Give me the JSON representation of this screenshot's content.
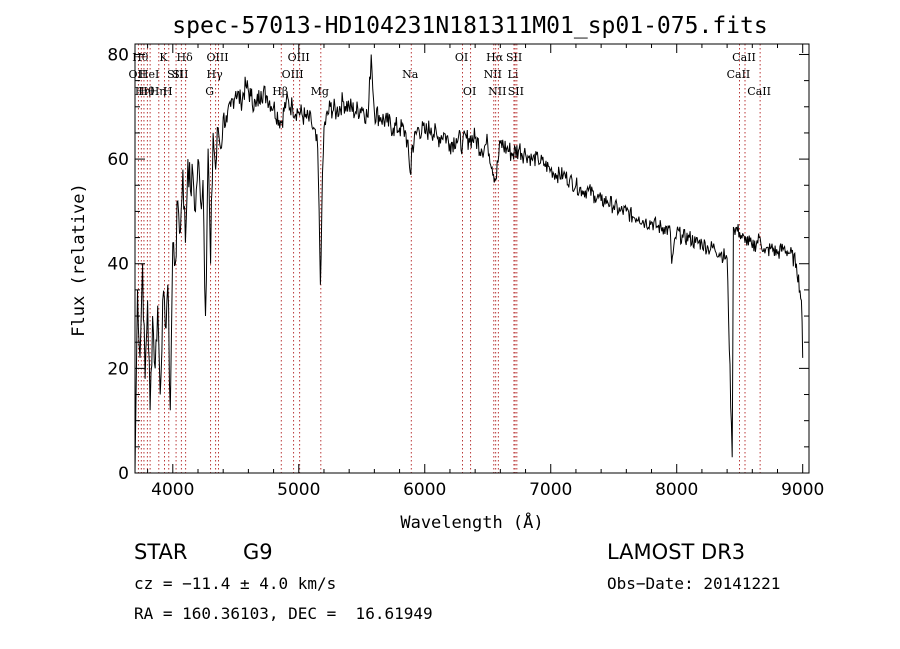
{
  "chart_data": {
    "type": "line",
    "title": "spec-57013-HD104231N181311M01_sp01-075.fits",
    "xlabel": "Wavelength (Å)",
    "ylabel": "Flux (relative)",
    "xlim": [
      3700,
      9050
    ],
    "ylim": [
      0,
      82
    ],
    "xticks": [
      4000,
      5000,
      6000,
      7000,
      8000,
      9000
    ],
    "yticks": [
      0,
      20,
      40,
      60,
      80
    ],
    "series": [
      {
        "x": [
          3700,
          3720,
          3740,
          3760,
          3780,
          3800,
          3820,
          3840,
          3860,
          3880,
          3900,
          3920,
          3940,
          3960,
          3980,
          4000,
          4020,
          4040,
          4060,
          4080,
          4100,
          4120,
          4140,
          4160,
          4180,
          4200,
          4220,
          4240,
          4260,
          4280,
          4300,
          4320,
          4340,
          4360,
          4380,
          4400,
          4430,
          4460,
          4500,
          4540,
          4580,
          4620,
          4660,
          4700,
          4750,
          4800,
          4861,
          4900,
          4950,
          5000,
          5050,
          5100,
          5150,
          5172,
          5183,
          5200,
          5250,
          5300,
          5350,
          5400,
          5450,
          5500,
          5550,
          5575,
          5600,
          5650,
          5700,
          5750,
          5800,
          5850,
          5890,
          5896,
          5950,
          6000,
          6050,
          6100,
          6150,
          6200,
          6250,
          6300,
          6350,
          6400,
          6450,
          6500,
          6563,
          6600,
          6650,
          6700,
          6750,
          6800,
          6850,
          6900,
          6950,
          7000,
          7050,
          7100,
          7150,
          7200,
          7250,
          7300,
          7350,
          7400,
          7450,
          7500,
          7550,
          7600,
          7650,
          7700,
          7750,
          7800,
          7850,
          7900,
          7950,
          7960,
          8000,
          8050,
          8100,
          8150,
          8200,
          8250,
          8300,
          8350,
          8400,
          8440,
          8450,
          8500,
          8542,
          8550,
          8600,
          8662,
          8700,
          8750,
          8800,
          8850,
          8900,
          8950,
          8990,
          9000
        ],
        "y": [
          0,
          35,
          22,
          40,
          18,
          33,
          12,
          30,
          20,
          32,
          15,
          33,
          28,
          36,
          12,
          44,
          40,
          52,
          46,
          58,
          44,
          60,
          54,
          57,
          50,
          60,
          52,
          56,
          30,
          62,
          40,
          65,
          58,
          66,
          62,
          68,
          67,
          70,
          73,
          71,
          74,
          72,
          70,
          73,
          72,
          70,
          67,
          71,
          70,
          69,
          68,
          67,
          62,
          36,
          50,
          66,
          70,
          69,
          71,
          70,
          69,
          70,
          68,
          80,
          69,
          68,
          67,
          66,
          66,
          65,
          57,
          62,
          66,
          65,
          66,
          64,
          65,
          63,
          64,
          63,
          64,
          64,
          62,
          63,
          56,
          63,
          62,
          61,
          62,
          61,
          60,
          60,
          59,
          58,
          57,
          57,
          56,
          55,
          54,
          54,
          53,
          52,
          52,
          51,
          50,
          50,
          49,
          49,
          48,
          48,
          47,
          47,
          46,
          40,
          46,
          45,
          45,
          44,
          44,
          43,
          43,
          42,
          41,
          3,
          47,
          46,
          44,
          45,
          43,
          45,
          42,
          43,
          42,
          43,
          42,
          40,
          33,
          22
        ]
      }
    ],
    "lines": [
      {
        "w": 3727,
        "label": "OII",
        "row": 1
      },
      {
        "w": 3750,
        "label": "Hθ",
        "row": 0
      },
      {
        "w": 3771,
        "label": "Hη",
        "row": 2
      },
      {
        "w": 3798,
        "label": "Hθ",
        "row": 2
      },
      {
        "w": 3820,
        "label": "HeI",
        "row": 1
      },
      {
        "w": 3889,
        "label": "Hη",
        "row": 2
      },
      {
        "w": 3934,
        "label": "K",
        "row": 0
      },
      {
        "w": 3968,
        "label": "H",
        "row": 2
      },
      {
        "w": 4026,
        "label": "SII",
        "row": 1
      },
      {
        "w": 4068,
        "label": "SII",
        "row": 1
      },
      {
        "w": 4102,
        "label": "Hδ",
        "row": 0
      },
      {
        "w": 4300,
        "label": "G",
        "row": 2
      },
      {
        "w": 4340,
        "label": "Hγ",
        "row": 1
      },
      {
        "w": 4363,
        "label": "OIII",
        "row": 0
      },
      {
        "w": 4861,
        "label": "Hβ",
        "row": 2
      },
      {
        "w": 4959,
        "label": "OIII",
        "row": 1
      },
      {
        "w": 5007,
        "label": "OIII",
        "row": 0
      },
      {
        "w": 5175,
        "label": "Mg",
        "row": 2
      },
      {
        "w": 5893,
        "label": "Na",
        "row": 1
      },
      {
        "w": 6300,
        "label": "OI",
        "row": 0
      },
      {
        "w": 6364,
        "label": "OI",
        "row": 2
      },
      {
        "w": 6548,
        "label": "NII",
        "row": 1
      },
      {
        "w": 6563,
        "label": "Hα",
        "row": 0
      },
      {
        "w": 6584,
        "label": "NII",
        "row": 2
      },
      {
        "w": 6708,
        "label": "Li",
        "row": 1
      },
      {
        "w": 6717,
        "label": "SII",
        "row": 0
      },
      {
        "w": 6731,
        "label": "SII",
        "row": 2
      },
      {
        "w": 8498,
        "label": "CaII",
        "row": 1
      },
      {
        "w": 8542,
        "label": "CaII",
        "row": 0
      },
      {
        "w": 8662,
        "label": "CaII",
        "row": 2
      }
    ]
  },
  "info": {
    "class": "STAR",
    "subclass": "G9",
    "survey": "LAMOST DR3",
    "cz": "cz = −11.4 ± 4.0 km/s",
    "obsdate": "Obs−Date: 20141221",
    "radec": "RA = 160.36103, DEC =  16.61949"
  }
}
